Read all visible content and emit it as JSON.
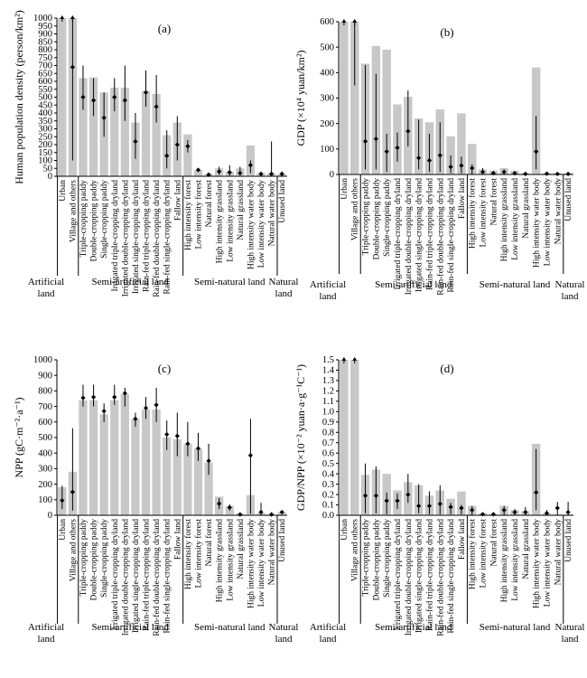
{
  "categories": [
    "Urban",
    "Village and others",
    "Triple-cropping paddy",
    "Double-cropping paddy",
    "Single-cropping paddy",
    "Irrigated triple-cropping dryland",
    "Irrigated double-cropping dryland",
    "Irrigated single-cropping dryland",
    "Rain-fed triple-cropping dryland",
    "Rain-fed double-cropping dryland",
    "Rain-fed single-cropping dryland",
    "Fallow land",
    "High intensity forest",
    "Low intensity forest",
    "Natural forest",
    "High intensity grassland",
    "Low intensity grassland",
    "Natural grassland",
    "High intensity water body",
    "Low intensity water body",
    "Natural water body",
    "Unused land"
  ],
  "groups": [
    {
      "label": "Artificial land",
      "lines": [
        "Artificial",
        "land"
      ],
      "start": 0,
      "end": 1
    },
    {
      "label": "Semi-artificial land",
      "lines": [
        "Semi-artificial land"
      ],
      "start": 2,
      "end": 11
    },
    {
      "label": "Semi-natural land",
      "lines": [
        "Semi-natural land"
      ],
      "start": 12,
      "end": 20
    },
    {
      "label": "Natural land",
      "lines": [
        "Natural",
        "land"
      ],
      "start": 21,
      "end": 21
    }
  ],
  "chart_data": [
    {
      "panel": "(a)",
      "type": "bar",
      "ylabel": "Human population density (person/km²)",
      "ylim": [
        0,
        1000
      ],
      "yticks": [
        "0",
        "50",
        "100",
        "150",
        "200",
        "250",
        "300",
        "350",
        "400",
        "450",
        "500",
        "550",
        "600",
        "650",
        "700",
        "750",
        "800",
        "850",
        "900",
        "950",
        "1000"
      ],
      "values": [
        1000,
        1000,
        620,
        625,
        530,
        560,
        560,
        340,
        540,
        520,
        260,
        340,
        265,
        40,
        15,
        50,
        30,
        50,
        195,
        20,
        20,
        15
      ],
      "points": [
        1000,
        690,
        500,
        480,
        370,
        500,
        480,
        220,
        530,
        440,
        130,
        200,
        190,
        40,
        10,
        30,
        25,
        20,
        70,
        15,
        15,
        15
      ],
      "err_low": [
        1000,
        100,
        420,
        380,
        250,
        410,
        350,
        110,
        440,
        340,
        50,
        100,
        150,
        30,
        5,
        10,
        5,
        5,
        20,
        0,
        0,
        0
      ],
      "err_high": [
        1000,
        1000,
        700,
        620,
        530,
        620,
        700,
        400,
        670,
        640,
        290,
        380,
        230,
        50,
        20,
        60,
        70,
        60,
        100,
        30,
        220,
        30
      ],
      "capped": [
        true,
        true,
        false,
        false,
        false,
        false,
        false,
        false,
        false,
        false,
        false,
        false,
        false,
        false,
        false,
        false,
        false,
        false,
        false,
        false,
        false,
        false
      ]
    },
    {
      "panel": "(b)",
      "type": "bar",
      "ylabel": "GDP (×10⁴ yuan/km²)",
      "ylim": [
        0,
        600
      ],
      "yticks": [
        "0",
        "100",
        "200",
        "300",
        "400",
        "500",
        "600"
      ],
      "values": [
        600,
        600,
        435,
        505,
        490,
        275,
        305,
        220,
        205,
        255,
        150,
        240,
        120,
        20,
        15,
        25,
        15,
        5,
        420,
        5,
        5,
        5
      ],
      "points": [
        600,
        600,
        130,
        140,
        90,
        105,
        170,
        65,
        55,
        75,
        30,
        35,
        25,
        10,
        5,
        10,
        5,
        2,
        90,
        3,
        2,
        2
      ],
      "err_low": [
        600,
        350,
        20,
        20,
        10,
        50,
        110,
        20,
        10,
        10,
        5,
        5,
        0,
        0,
        0,
        0,
        0,
        0,
        20,
        0,
        0,
        0
      ],
      "err_high": [
        600,
        600,
        430,
        395,
        160,
        165,
        330,
        215,
        160,
        205,
        75,
        70,
        40,
        25,
        15,
        20,
        10,
        10,
        230,
        5,
        5,
        5
      ],
      "capped": [
        true,
        true,
        false,
        false,
        false,
        false,
        false,
        false,
        false,
        false,
        false,
        false,
        false,
        false,
        false,
        false,
        false,
        false,
        false,
        false,
        false,
        false
      ]
    },
    {
      "panel": "(c)",
      "type": "bar",
      "ylabel": "NPP (gC·m⁻²·a⁻¹)",
      "ylim": [
        0,
        1000
      ],
      "yticks": [
        "0",
        "100",
        "200",
        "300",
        "400",
        "500",
        "600",
        "700",
        "800",
        "900",
        "1000"
      ],
      "values": [
        180,
        280,
        740,
        740,
        650,
        740,
        780,
        620,
        680,
        680,
        500,
        490,
        460,
        430,
        340,
        120,
        60,
        10,
        130,
        15,
        5,
        20
      ],
      "points": [
        95,
        150,
        755,
        760,
        670,
        760,
        785,
        620,
        690,
        710,
        520,
        510,
        460,
        430,
        350,
        75,
        50,
        5,
        385,
        20,
        5,
        20
      ],
      "err_low": [
        40,
        30,
        700,
        700,
        600,
        710,
        700,
        570,
        620,
        600,
        420,
        380,
        380,
        350,
        260,
        40,
        30,
        0,
        10,
        0,
        0,
        10
      ],
      "err_high": [
        190,
        560,
        840,
        840,
        720,
        840,
        820,
        660,
        760,
        820,
        610,
        660,
        600,
        530,
        460,
        110,
        70,
        15,
        620,
        80,
        20,
        25
      ],
      "capped": [
        false,
        false,
        false,
        false,
        false,
        false,
        false,
        false,
        false,
        false,
        false,
        false,
        false,
        false,
        false,
        false,
        false,
        false,
        false,
        false,
        false,
        false
      ]
    },
    {
      "panel": "(d)",
      "type": "bar",
      "ylabel": "GDP/NPP (×10⁻² yuan·a·g⁻¹C⁻¹)",
      "ylim": [
        0,
        1.5
      ],
      "yticks": [
        "0.0",
        "0.1",
        "0.2",
        "0.3",
        "0.4",
        "0.5",
        "0.6",
        "0.7",
        "0.8",
        "0.9",
        "1.0",
        "1.1",
        "1.2",
        "1.3",
        "1.4",
        "1.5"
      ],
      "values": [
        1.5,
        1.5,
        0.39,
        0.44,
        0.4,
        0.24,
        0.32,
        0.29,
        0.19,
        0.24,
        0.16,
        0.23,
        0.09,
        0.02,
        0.01,
        0.09,
        0.05,
        0.04,
        0.69,
        0.02,
        0.01,
        0.01
      ],
      "points": [
        1.5,
        1.5,
        0.19,
        0.19,
        0.14,
        0.14,
        0.2,
        0.09,
        0.09,
        0.11,
        0.08,
        0.07,
        0.05,
        0.01,
        0.01,
        0.05,
        0.03,
        0.03,
        0.22,
        0.02,
        0.07,
        0.03
      ],
      "err_low": [
        1.5,
        1.5,
        0.02,
        0.02,
        0.01,
        0.06,
        0.12,
        0.02,
        0.01,
        0.01,
        0.01,
        0.01,
        0.0,
        0.0,
        0.0,
        0.0,
        0.0,
        0.0,
        0.05,
        0.0,
        0.0,
        0.0
      ],
      "err_high": [
        1.5,
        1.5,
        0.5,
        0.47,
        0.22,
        0.21,
        0.4,
        0.3,
        0.23,
        0.29,
        0.12,
        0.1,
        0.09,
        0.02,
        0.02,
        0.09,
        0.06,
        0.08,
        0.64,
        0.05,
        0.13,
        0.13
      ],
      "capped": [
        true,
        true,
        false,
        false,
        false,
        false,
        false,
        false,
        false,
        false,
        false,
        false,
        false,
        false,
        false,
        false,
        false,
        false,
        false,
        false,
        false,
        false
      ]
    }
  ],
  "colors": {
    "bar": "#c8c8c8",
    "axis": "#000000",
    "point": "#000000"
  }
}
